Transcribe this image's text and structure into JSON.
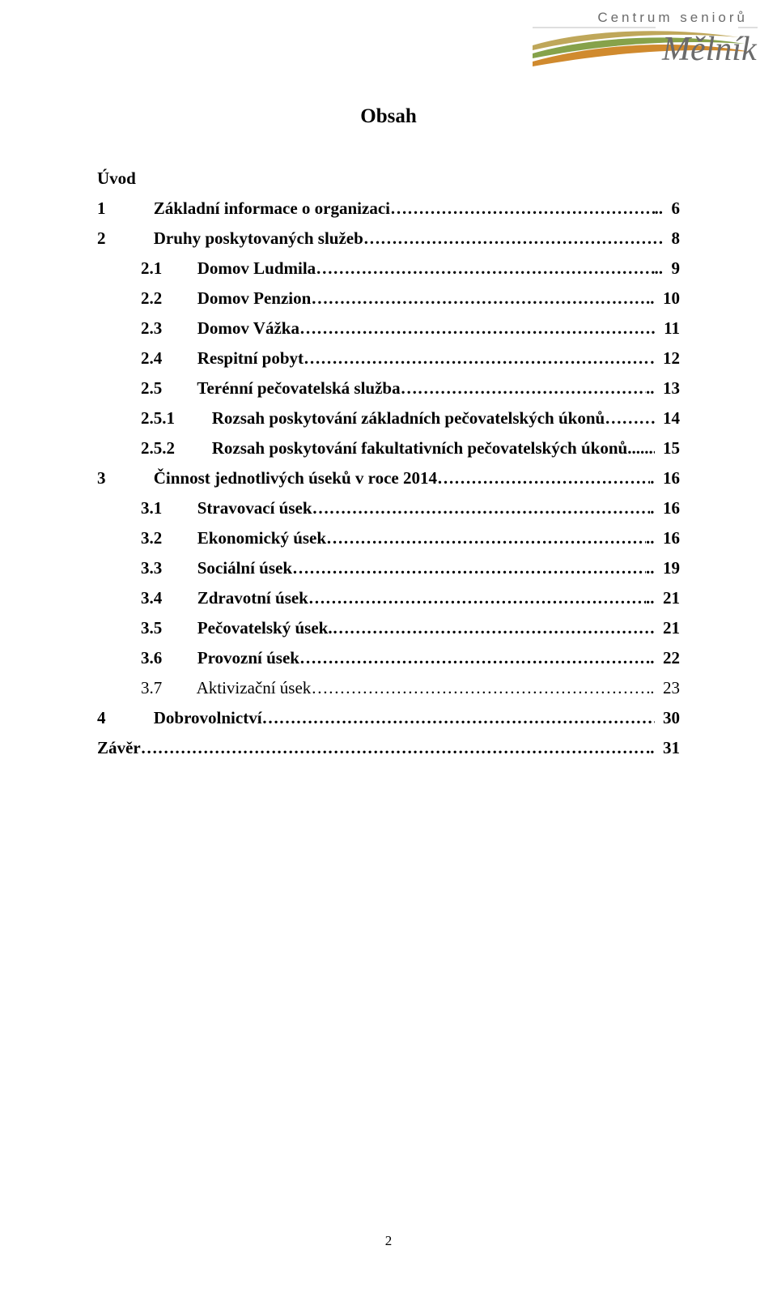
{
  "logo": {
    "top_text": "Centrum seniorů",
    "brand_text": "Mělník",
    "colors": {
      "text_grey": "#6b6b6b",
      "swoosh1": "#bfa75a",
      "swoosh2": "#86a24a",
      "swoosh3": "#d08a2e",
      "brand_fill": "#6b6b6b"
    }
  },
  "title": "Obsah",
  "toc": [
    {
      "level": 0,
      "num": "",
      "label": "Úvod",
      "page": "",
      "nodots": true
    },
    {
      "level": 1,
      "num": "1",
      "label": "Základní informace o organizaci",
      "page": "6",
      "trail": ".."
    },
    {
      "level": 1,
      "num": "2",
      "label": "Druhy poskytovaných služeb",
      "page": "8",
      "trail": ""
    },
    {
      "level": 2,
      "num": "2.1",
      "label": "Domov Ludmila",
      "page": "9",
      "trail": ".."
    },
    {
      "level": 2,
      "num": "2.2",
      "label": "Domov Penzion",
      "page": "10",
      "trail": ".."
    },
    {
      "level": 2,
      "num": "2.3",
      "label": "Domov Vážka",
      "page": "11",
      "trail": "."
    },
    {
      "level": 2,
      "num": "2.4",
      "label": "Respitní pobyt",
      "page": "12",
      "trail": "."
    },
    {
      "level": 2,
      "num": "2.5",
      "label": "Terénní pečovatelská služba",
      "page": "13",
      "trail": ".."
    },
    {
      "level": 3,
      "num": "2.5.1",
      "label": "Rozsah poskytování základních pečovatelských úkonů",
      "page": "14",
      "dashdots": true
    },
    {
      "level": 3,
      "num": "2.5.2",
      "label": "Rozsah poskytování fakultativních pečovatelských úkonů",
      "page": "15",
      "dots3": true
    },
    {
      "level": 1,
      "num": "3",
      "label": "Činnost jednotlivých úseků v roce 2014",
      "page": "16",
      "trail": "."
    },
    {
      "level": 2,
      "num": "3.1",
      "label": "Stravovací úsek",
      "page": "16",
      "trail": "."
    },
    {
      "level": 2,
      "num": "3.2",
      "label": "Ekonomický úsek",
      "page": "16",
      "trail": ".."
    },
    {
      "level": 2,
      "num": "3.3",
      "label": "Sociální úsek",
      "page": "19",
      "trail": ".."
    },
    {
      "level": 2,
      "num": "3.4",
      "label": "Zdravotní úsek",
      "page": "21",
      "trail": ".."
    },
    {
      "level": 2,
      "num": "3.5",
      "label": "Pečovatelský úsek",
      "page": "21",
      "dotsmix": true,
      "trail": "."
    },
    {
      "level": 2,
      "num": "3.6",
      "label": "Provozní úsek",
      "page": "22",
      "trail": "."
    },
    {
      "level": 2,
      "num": "3.7",
      "label": "Aktivizační úsek",
      "page": "23",
      "trail": ".",
      "normal": true
    },
    {
      "level": 1,
      "num": "4",
      "label": "Dobrovolnictví",
      "page": "30",
      "trail": ""
    },
    {
      "level": 0,
      "num": "",
      "label": "Závěr",
      "page": "31",
      "trail": ".."
    }
  ],
  "page_number": "2"
}
